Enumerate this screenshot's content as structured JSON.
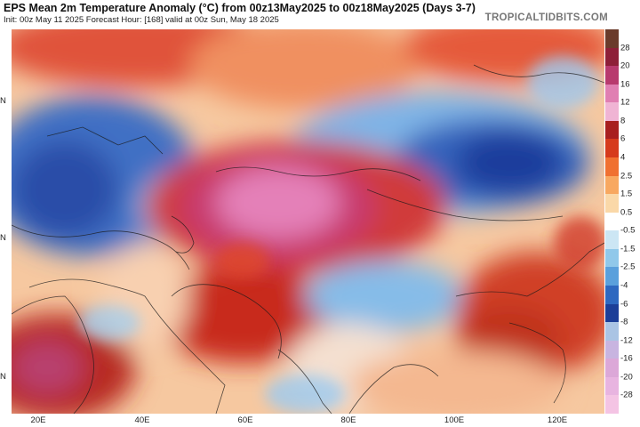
{
  "header": {
    "title": "EPS Mean 2m Temperature Anomaly (°C) from 00z13May2025 to 00z18May2025 (Days 3-7)",
    "subtitle": "Init: 00z May 11 2025   Forecast Hour: [168]   valid at 00z Sun, May 18 2025",
    "brand": "TROPICALTIDBITS.COM"
  },
  "axes": {
    "lon_labels": [
      "20E",
      "40E",
      "60E",
      "80E",
      "100E",
      "120E"
    ],
    "lat_labels": [
      "N",
      "N",
      "N"
    ]
  },
  "legend": {
    "unit": "°C",
    "labels": [
      "28",
      "20",
      "16",
      "12",
      "8",
      "6",
      "4",
      "2.5",
      "1.5",
      "0.5",
      "-0.5",
      "-1.5",
      "-2.5",
      "-4",
      "-6",
      "-8",
      "-12",
      "-16",
      "-20",
      "-28"
    ],
    "colors": [
      "#6b3b2b",
      "#8e1f38",
      "#b83a6e",
      "#e07fb2",
      "#f0b4d4",
      "#a81f1f",
      "#d63a1c",
      "#f07030",
      "#f8a860",
      "#fad8a8",
      "#ffffff",
      "#cce6f4",
      "#90c8ea",
      "#5aa0dc",
      "#2e68c0",
      "#1c3e98",
      "#aac4e4",
      "#c8b4e0",
      "#dca8d8",
      "#e8b4e0",
      "#f4c4e4"
    ]
  },
  "map": {
    "region": "Central Asia",
    "warm_core_color": "#e06aa8",
    "cold_core_color": "#1e3e9c"
  }
}
